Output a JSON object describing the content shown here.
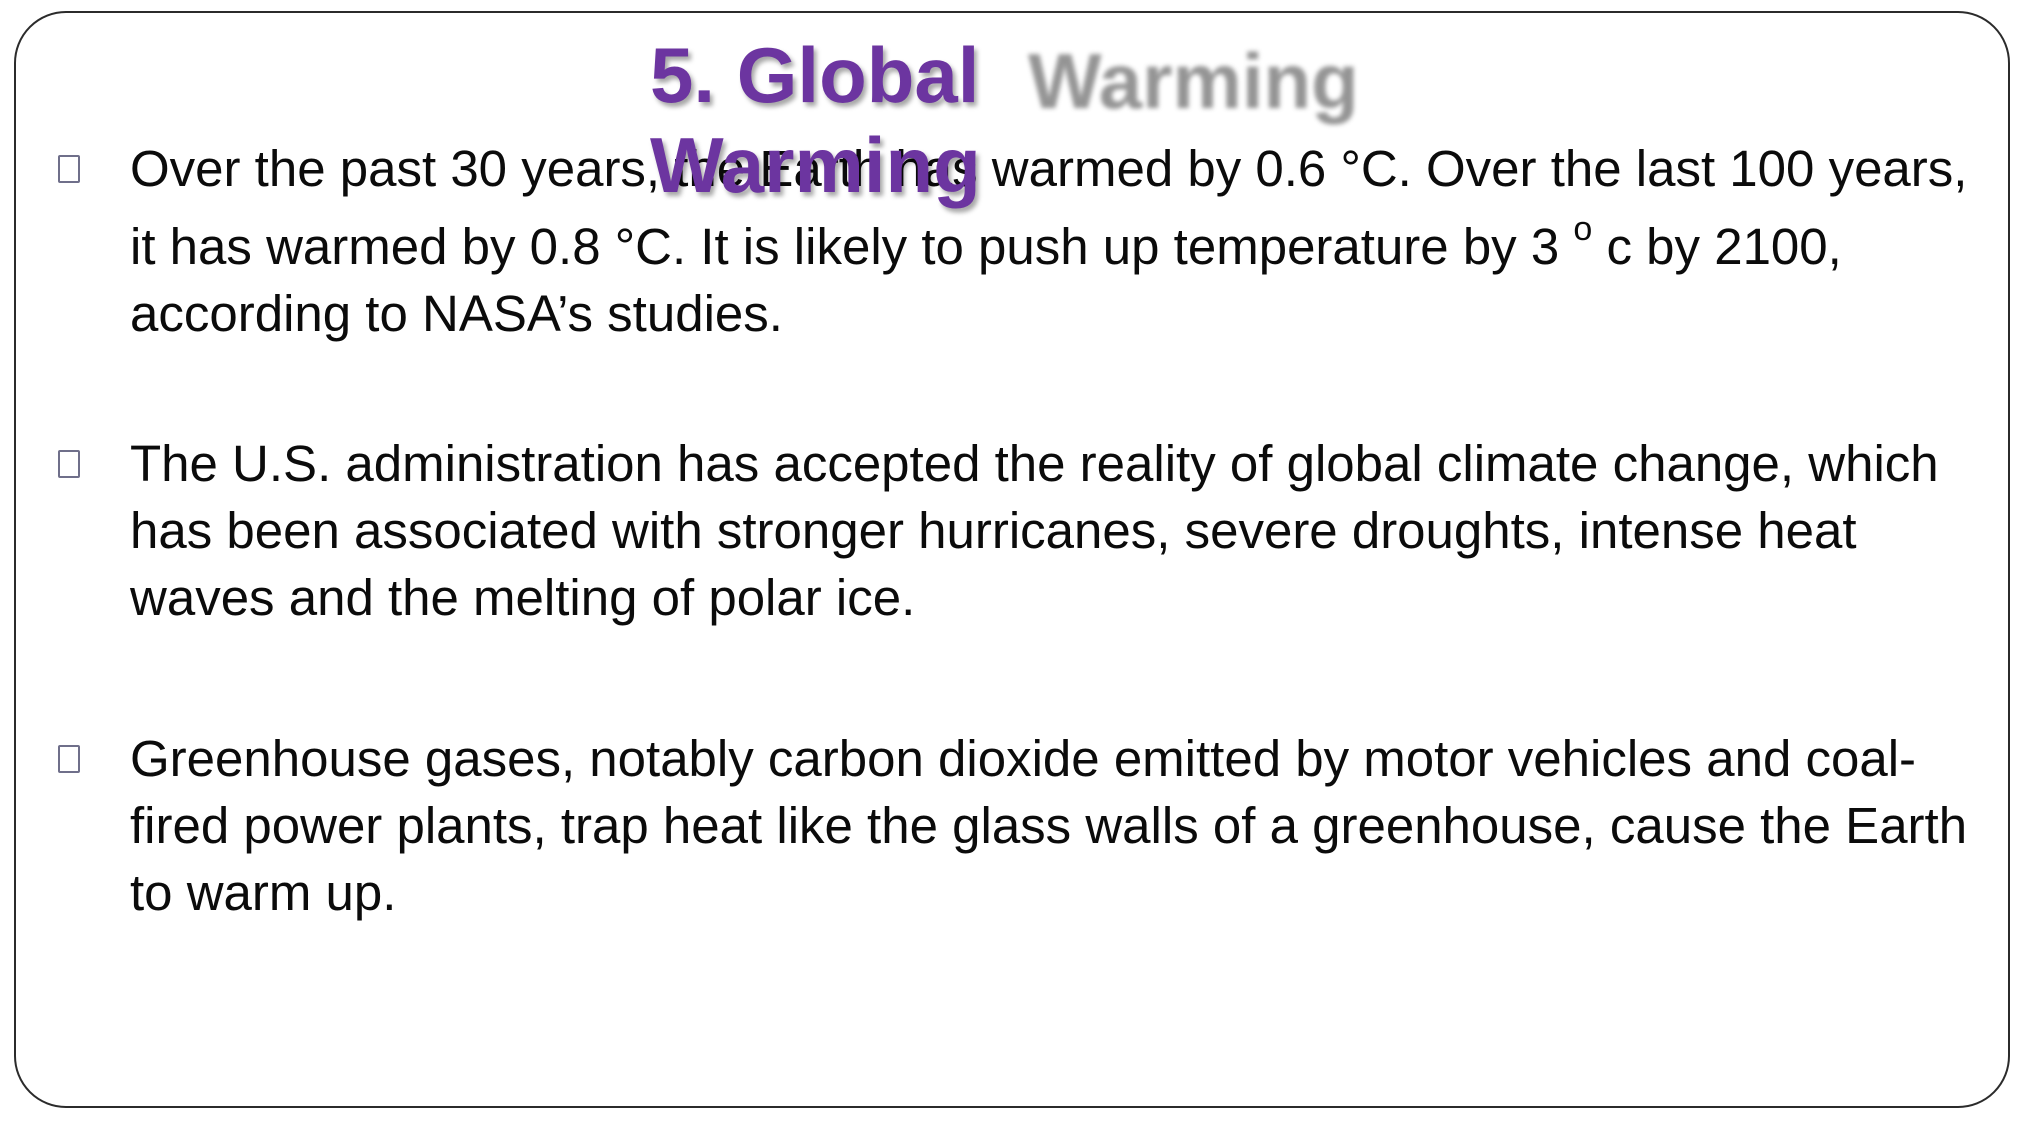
{
  "slide": {
    "title": "5. Global Warming",
    "title_shadow_word": "Warming",
    "bullets": [
      {
        "text": "Over the past 30 years, the Earth has warmed by 0.6 °C. Over the last 100 years, it has warmed by 0.8 °C. It is likely to push up temperature by 3",
        "sup": "o",
        "tail": "c by 2100, according to NASA’s studies."
      },
      {
        "text": "The U.S. administration has accepted the reality of global climate change, which has been associated with stronger hurricanes, severe droughts, intense heat waves and the melting of polar ice."
      },
      {
        "text": "Greenhouse gases, notably carbon dioxide emitted by motor vehicles and coal-fired power plants, trap heat like the glass walls of a greenhouse, cause the Earth to warm up."
      }
    ],
    "bullet_icon": "square-bullet-icon",
    "colors": {
      "title": "#6c35a0",
      "title_shadow": "#7a7a7a",
      "body_text": "#0b0b0b",
      "frame": "#2b2b2b"
    }
  }
}
